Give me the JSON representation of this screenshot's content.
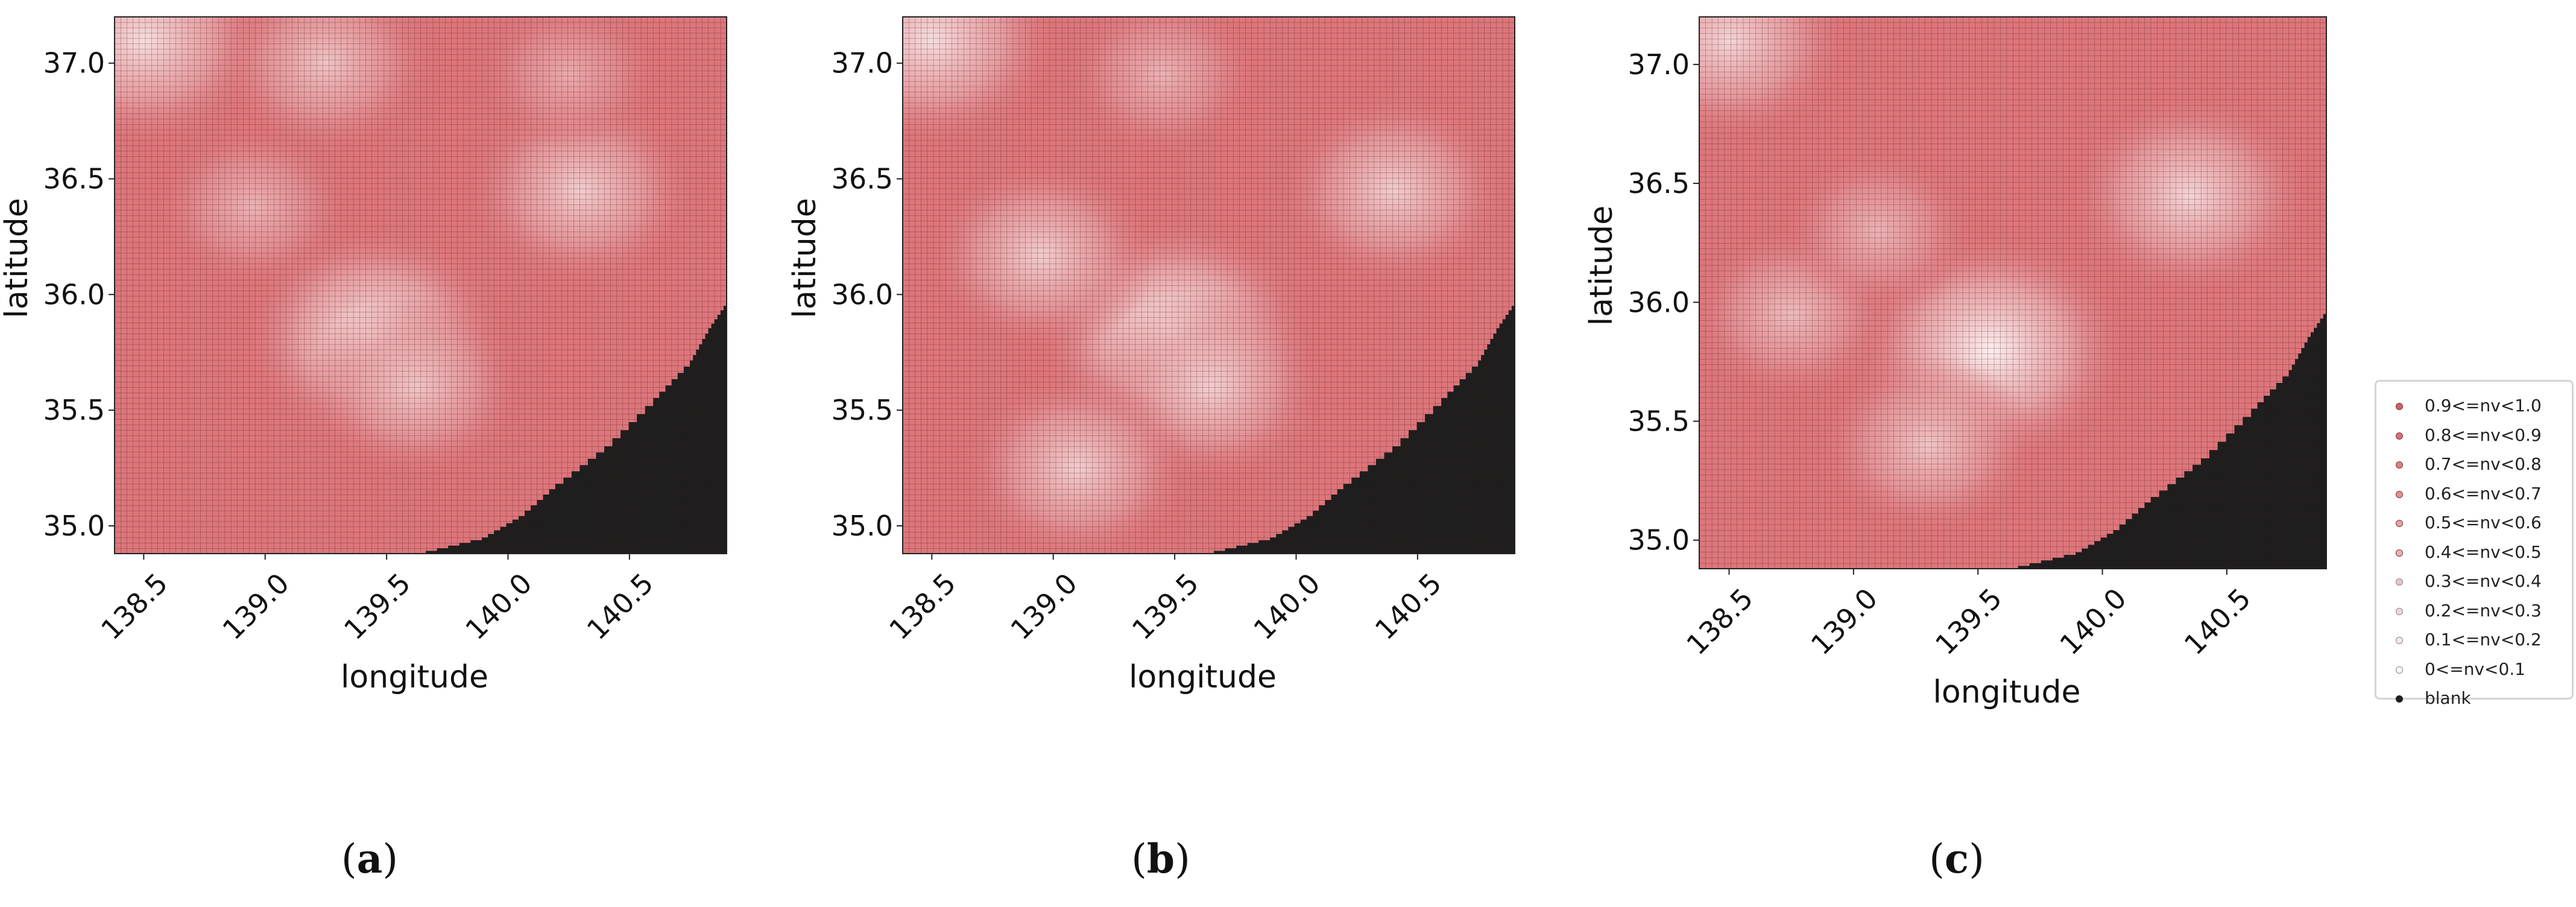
{
  "colors": {
    "high": "#d4545a",
    "low": "#ffffff",
    "blank": "#1e1e1e",
    "grid_line": "#3a1416"
  },
  "chart_data": [
    {
      "type": "heatmap",
      "caption_label": "a",
      "xlabel": "longitude",
      "ylabel": "latitude",
      "xlim": [
        138.38,
        140.9
      ],
      "ylim": [
        34.88,
        37.2
      ],
      "xticks": [
        138.5,
        139.0,
        139.5,
        140.0,
        140.5
      ],
      "xtick_labels": [
        "138.5",
        "139.0",
        "139.5",
        "140.0",
        "140.5"
      ],
      "yticks": [
        35.0,
        35.5,
        36.0,
        36.5,
        37.0
      ],
      "ytick_labels": [
        "35.0",
        "35.5",
        "36.0",
        "36.5",
        "37.0"
      ],
      "grid_cells": [
        100,
        100
      ],
      "value_field": "nv",
      "value_range": [
        0,
        1
      ],
      "typical_value": 0.8,
      "blank_region": "southeast (ocean)",
      "light_spots": [
        {
          "lon": 139.45,
          "lat": 35.82,
          "nv": 0.15
        },
        {
          "lon": 139.62,
          "lat": 35.6,
          "nv": 0.35
        },
        {
          "lon": 138.5,
          "lat": 37.1,
          "nv": 0.2
        },
        {
          "lon": 139.25,
          "lat": 37.0,
          "nv": 0.35
        },
        {
          "lon": 140.3,
          "lat": 36.45,
          "nv": 0.3
        },
        {
          "lon": 138.95,
          "lat": 36.38,
          "nv": 0.45
        },
        {
          "lon": 140.25,
          "lat": 36.95,
          "nv": 0.5
        }
      ]
    },
    {
      "type": "heatmap",
      "caption_label": "b",
      "xlabel": "longitude",
      "ylabel": "latitude",
      "xlim": [
        138.38,
        140.9
      ],
      "ylim": [
        34.88,
        37.2
      ],
      "xticks": [
        138.5,
        139.0,
        139.5,
        140.0,
        140.5
      ],
      "xtick_labels": [
        "138.5",
        "139.0",
        "139.5",
        "140.0",
        "140.5"
      ],
      "yticks": [
        35.0,
        35.5,
        36.0,
        36.5,
        37.0
      ],
      "ytick_labels": [
        "35.0",
        "35.5",
        "36.0",
        "36.5",
        "37.0"
      ],
      "grid_cells": [
        100,
        100
      ],
      "value_field": "nv",
      "value_range": [
        0,
        1
      ],
      "typical_value": 0.8,
      "blank_region": "southeast (ocean)",
      "light_spots": [
        {
          "lon": 139.5,
          "lat": 35.83,
          "nv": 0.1
        },
        {
          "lon": 139.65,
          "lat": 35.6,
          "nv": 0.3
        },
        {
          "lon": 139.1,
          "lat": 35.25,
          "nv": 0.3
        },
        {
          "lon": 138.95,
          "lat": 36.17,
          "nv": 0.3
        },
        {
          "lon": 138.5,
          "lat": 37.1,
          "nv": 0.2
        },
        {
          "lon": 140.4,
          "lat": 36.45,
          "nv": 0.3
        },
        {
          "lon": 139.45,
          "lat": 36.95,
          "nv": 0.45
        }
      ]
    },
    {
      "type": "heatmap",
      "caption_label": "c",
      "xlabel": "longitude",
      "ylabel": "latitude",
      "xlim": [
        138.38,
        140.9
      ],
      "ylim": [
        34.88,
        37.2
      ],
      "xticks": [
        138.5,
        139.0,
        139.5,
        140.0,
        140.5
      ],
      "xtick_labels": [
        "138.5",
        "139.0",
        "139.5",
        "140.0",
        "140.5"
      ],
      "yticks": [
        35.0,
        35.5,
        36.0,
        36.5,
        37.0
      ],
      "ytick_labels": [
        "35.0",
        "35.5",
        "36.0",
        "36.5",
        "37.0"
      ],
      "grid_cells": [
        100,
        100
      ],
      "value_field": "nv",
      "value_range": [
        0,
        1
      ],
      "typical_value": 0.8,
      "blank_region": "southeast (ocean)",
      "light_spots": [
        {
          "lon": 139.55,
          "lat": 35.8,
          "nv": 0.1
        },
        {
          "lon": 139.3,
          "lat": 35.4,
          "nv": 0.35
        },
        {
          "lon": 138.75,
          "lat": 35.95,
          "nv": 0.4
        },
        {
          "lon": 138.5,
          "lat": 37.1,
          "nv": 0.25
        },
        {
          "lon": 140.35,
          "lat": 36.45,
          "nv": 0.25
        },
        {
          "lon": 139.1,
          "lat": 36.3,
          "nv": 0.45
        }
      ]
    }
  ],
  "legend": {
    "title": "",
    "placement": "right",
    "entries": [
      {
        "label": "0.9<=nv<1.0",
        "level": 0.95
      },
      {
        "label": "0.8<=nv<0.9",
        "level": 0.85
      },
      {
        "label": "0.7<=nv<0.8",
        "level": 0.75
      },
      {
        "label": "0.6<=nv<0.7",
        "level": 0.65
      },
      {
        "label": "0.5<=nv<0.6",
        "level": 0.55
      },
      {
        "label": "0.4<=nv<0.5",
        "level": 0.45
      },
      {
        "label": "0.3<=nv<0.4",
        "level": 0.35
      },
      {
        "label": "0.2<=nv<0.3",
        "level": 0.25
      },
      {
        "label": "0.1<=nv<0.2",
        "level": 0.15
      },
      {
        "label": "0<=nv<0.1",
        "level": 0.05
      },
      {
        "label": "blank",
        "level": -1
      }
    ]
  },
  "captions": [
    {
      "open": "(",
      "letter": "a",
      "close": ")"
    },
    {
      "open": "(",
      "letter": "b",
      "close": ")"
    },
    {
      "open": "(",
      "letter": "c",
      "close": ")"
    }
  ]
}
